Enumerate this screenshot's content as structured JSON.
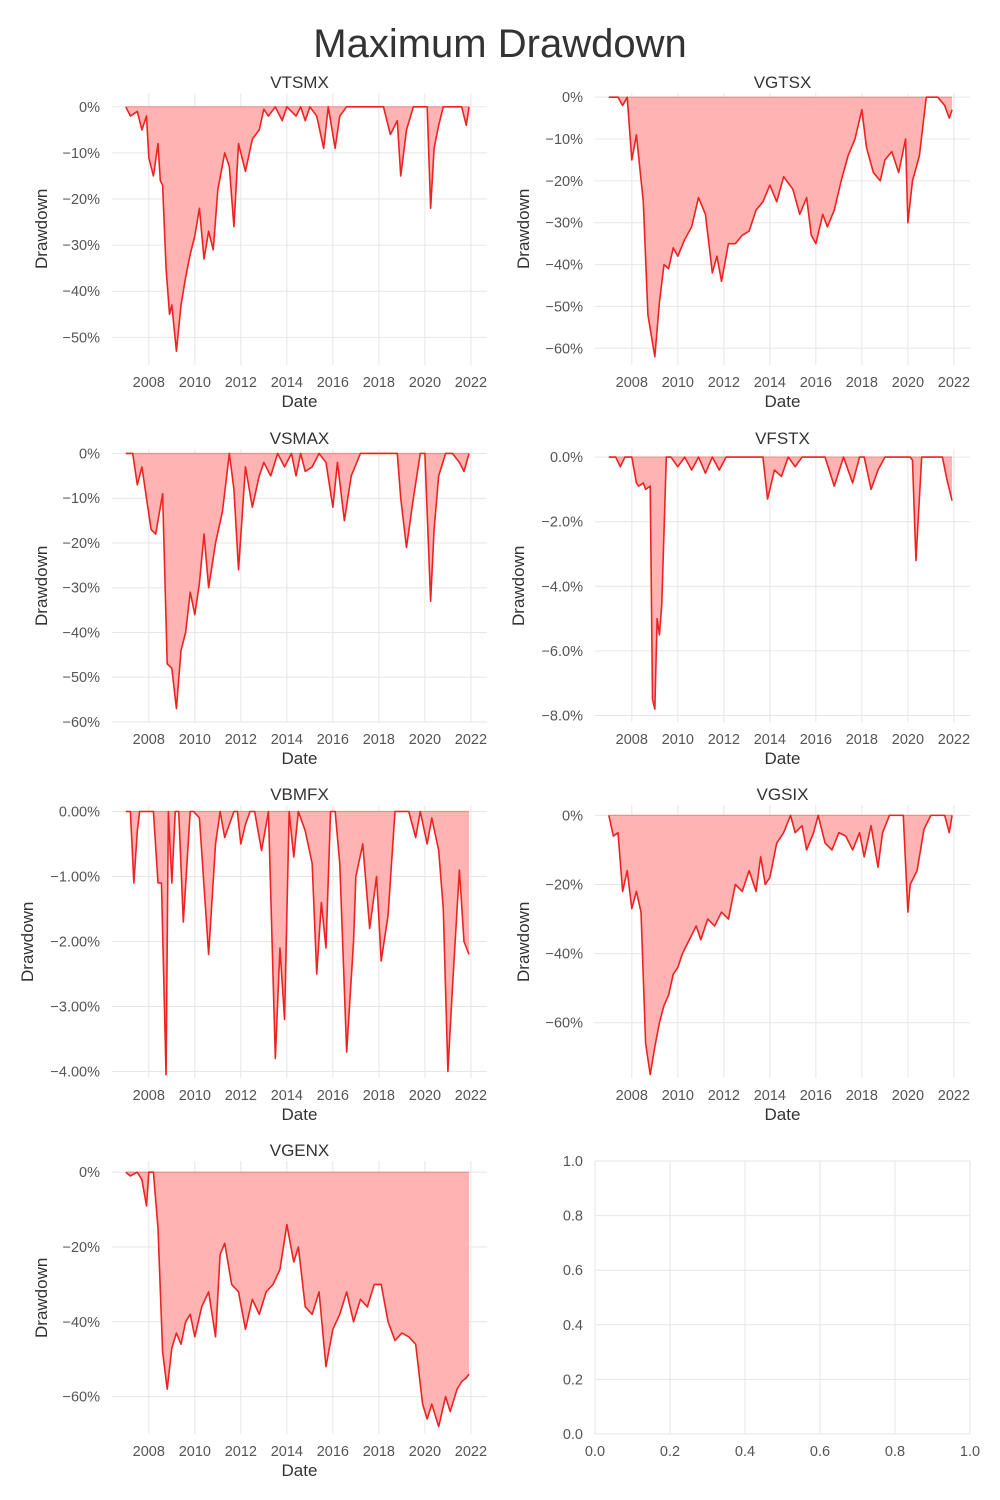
{
  "suptitle": "Maximum Drawdown",
  "chart_data": [
    {
      "type": "area",
      "title": "VTSMX",
      "xlabel": "Date",
      "ylabel": "Drawdown",
      "color": "#ee2222",
      "fill": "#ffb3b3",
      "xlim": [
        2006.4,
        2022.7
      ],
      "ylim": [
        -56,
        3
      ],
      "xticks": [
        2008,
        2010,
        2012,
        2014,
        2016,
        2018,
        2020,
        2022
      ],
      "xtick_labels": [
        "2008",
        "2010",
        "2012",
        "2014",
        "2016",
        "2018",
        "2020",
        "2022"
      ],
      "yticks": [
        0,
        -10,
        -20,
        -30,
        -40,
        -50
      ],
      "ytick_labels": [
        "0%",
        "−10%",
        "−20%",
        "−30%",
        "−40%",
        "−50%"
      ],
      "x": [
        2007.0,
        2007.2,
        2007.5,
        2007.7,
        2007.9,
        2008.0,
        2008.2,
        2008.4,
        2008.5,
        2008.6,
        2008.75,
        2008.9,
        2009.0,
        2009.2,
        2009.4,
        2009.6,
        2009.8,
        2010.0,
        2010.2,
        2010.4,
        2010.6,
        2010.8,
        2011.0,
        2011.3,
        2011.5,
        2011.7,
        2011.9,
        2012.2,
        2012.5,
        2012.8,
        2013.0,
        2013.2,
        2013.5,
        2013.8,
        2014.0,
        2014.2,
        2014.4,
        2014.6,
        2014.8,
        2015.0,
        2015.3,
        2015.6,
        2015.8,
        2016.1,
        2016.3,
        2016.6,
        2017.0,
        2017.5,
        2018.0,
        2018.2,
        2018.5,
        2018.8,
        2018.95,
        2019.2,
        2019.5,
        2019.8,
        2020.1,
        2020.25,
        2020.4,
        2020.6,
        2020.8,
        2021.0,
        2021.4,
        2021.6,
        2021.8,
        2021.92
      ],
      "y": [
        0,
        -2,
        -1,
        -5,
        -2,
        -11,
        -15,
        -8,
        -16,
        -17,
        -35,
        -45,
        -43,
        -53,
        -43,
        -37,
        -32,
        -28,
        -22,
        -33,
        -27,
        -31,
        -18,
        -10,
        -13,
        -26,
        -8,
        -14,
        -7,
        -5,
        -0.5,
        -2,
        0,
        -3,
        0,
        -1,
        -2,
        0,
        -3,
        0,
        -2,
        -9,
        0,
        -9,
        -2,
        0,
        0,
        0,
        0,
        0,
        -6,
        -3,
        -15,
        -5,
        0,
        0,
        0,
        -22,
        -9,
        -4,
        0,
        0,
        0,
        0,
        -4,
        0
      ]
    },
    {
      "type": "area",
      "title": "VGTSX",
      "xlabel": "Date",
      "ylabel": "Drawdown",
      "color": "#ee2222",
      "fill": "#ffb3b3",
      "xlim": [
        2006.4,
        2022.7
      ],
      "ylim": [
        -64,
        1
      ],
      "xticks": [
        2008,
        2010,
        2012,
        2014,
        2016,
        2018,
        2020,
        2022
      ],
      "xtick_labels": [
        "2008",
        "2010",
        "2012",
        "2014",
        "2016",
        "2018",
        "2020",
        "2022"
      ],
      "yticks": [
        0,
        -10,
        -20,
        -30,
        -40,
        -50,
        -60
      ],
      "ytick_labels": [
        "0%",
        "−10%",
        "−20%",
        "−30%",
        "−40%",
        "−50%",
        "−60%"
      ],
      "x": [
        2007.0,
        2007.4,
        2007.6,
        2007.8,
        2008.0,
        2008.2,
        2008.5,
        2008.7,
        2009.0,
        2009.2,
        2009.4,
        2009.6,
        2009.8,
        2010.0,
        2010.3,
        2010.6,
        2010.9,
        2011.2,
        2011.5,
        2011.7,
        2011.9,
        2012.2,
        2012.5,
        2012.8,
        2013.1,
        2013.4,
        2013.7,
        2014.0,
        2014.3,
        2014.6,
        2015.0,
        2015.3,
        2015.6,
        2015.8,
        2016.0,
        2016.3,
        2016.5,
        2016.8,
        2017.1,
        2017.4,
        2017.7,
        2018.0,
        2018.2,
        2018.5,
        2018.8,
        2019.0,
        2019.3,
        2019.6,
        2019.9,
        2020.0,
        2020.2,
        2020.5,
        2020.8,
        2021.0,
        2021.3,
        2021.6,
        2021.8,
        2021.92
      ],
      "y": [
        0,
        0,
        -2,
        0,
        -15,
        -9,
        -25,
        -52,
        -62,
        -49,
        -40,
        -41,
        -36,
        -38,
        -34,
        -31,
        -24,
        -28,
        -42,
        -38,
        -44,
        -35,
        -35,
        -33,
        -32,
        -27,
        -25,
        -21,
        -25,
        -19,
        -22,
        -28,
        -24,
        -33,
        -35,
        -28,
        -31,
        -27,
        -20,
        -14,
        -10,
        -3,
        -12,
        -18,
        -20,
        -15,
        -13,
        -18,
        -10,
        -30,
        -20,
        -14,
        0,
        0,
        0,
        -2,
        -5,
        -3
      ]
    },
    {
      "type": "area",
      "title": "VSMAX",
      "xlabel": "Date",
      "ylabel": "Drawdown",
      "color": "#ee2222",
      "fill": "#ffb3b3",
      "xlim": [
        2006.4,
        2022.7
      ],
      "ylim": [
        -60,
        1
      ],
      "xticks": [
        2008,
        2010,
        2012,
        2014,
        2016,
        2018,
        2020,
        2022
      ],
      "xtick_labels": [
        "2008",
        "2010",
        "2012",
        "2014",
        "2016",
        "2018",
        "2020",
        "2022"
      ],
      "yticks": [
        0,
        -10,
        -20,
        -30,
        -40,
        -50,
        -60
      ],
      "ytick_labels": [
        "0%",
        "−10%",
        "−20%",
        "−30%",
        "−40%",
        "−50%",
        "−60%"
      ],
      "x": [
        2007.0,
        2007.3,
        2007.5,
        2007.7,
        2007.9,
        2008.1,
        2008.3,
        2008.6,
        2008.8,
        2009.0,
        2009.2,
        2009.4,
        2009.6,
        2009.8,
        2010.0,
        2010.2,
        2010.4,
        2010.6,
        2010.9,
        2011.2,
        2011.5,
        2011.7,
        2011.9,
        2012.2,
        2012.5,
        2012.8,
        2013.0,
        2013.3,
        2013.6,
        2013.9,
        2014.2,
        2014.4,
        2014.6,
        2014.8,
        2015.1,
        2015.4,
        2015.7,
        2016.0,
        2016.2,
        2016.5,
        2016.8,
        2017.2,
        2017.6,
        2018.0,
        2018.4,
        2018.8,
        2018.95,
        2019.2,
        2019.5,
        2019.8,
        2020.0,
        2020.25,
        2020.4,
        2020.6,
        2020.9,
        2021.2,
        2021.5,
        2021.7,
        2021.92
      ],
      "y": [
        0,
        0,
        -7,
        -3,
        -10,
        -17,
        -18,
        -9,
        -47,
        -48,
        -57,
        -44,
        -40,
        -31,
        -36,
        -29,
        -18,
        -30,
        -20,
        -13,
        0,
        -8,
        -26,
        -3,
        -12,
        -5,
        -2,
        -5,
        0,
        -3,
        0,
        -5,
        0,
        -4,
        -3,
        0,
        -2,
        -12,
        -2,
        -15,
        -5,
        0,
        0,
        0,
        0,
        0,
        -10,
        -21,
        -10,
        0,
        0,
        -33,
        -17,
        -5,
        0,
        0,
        -2,
        -4,
        0
      ]
    },
    {
      "type": "area",
      "title": "VFSTX",
      "xlabel": "Date",
      "ylabel": "Drawdown",
      "color": "#ee2222",
      "fill": "#ffb3b3",
      "xlim": [
        2006.4,
        2022.7
      ],
      "ylim": [
        -8.2,
        0.25
      ],
      "xticks": [
        2008,
        2010,
        2012,
        2014,
        2016,
        2018,
        2020,
        2022
      ],
      "xtick_labels": [
        "2008",
        "2010",
        "2012",
        "2014",
        "2016",
        "2018",
        "2020",
        "2022"
      ],
      "yticks": [
        0,
        -2,
        -4,
        -6,
        -8
      ],
      "ytick_labels": [
        "0.0%",
        "−2.0%",
        "−4.0%",
        "−6.0%",
        "−8.0%"
      ],
      "x": [
        2007.0,
        2007.3,
        2007.5,
        2007.7,
        2007.8,
        2008.0,
        2008.2,
        2008.3,
        2008.5,
        2008.6,
        2008.8,
        2008.9,
        2009.0,
        2009.1,
        2009.2,
        2009.3,
        2009.5,
        2009.7,
        2010.0,
        2010.3,
        2010.6,
        2010.9,
        2011.2,
        2011.5,
        2011.8,
        2012.1,
        2012.5,
        2013.0,
        2013.4,
        2013.7,
        2013.9,
        2014.2,
        2014.5,
        2014.8,
        2015.1,
        2015.4,
        2015.8,
        2016.1,
        2016.4,
        2016.8,
        2017.2,
        2017.6,
        2017.9,
        2018.1,
        2018.4,
        2018.7,
        2019.0,
        2019.3,
        2019.6,
        2019.8,
        2020.0,
        2020.1,
        2020.2,
        2020.35,
        2020.6,
        2020.9,
        2021.2,
        2021.5,
        2021.7,
        2021.92
      ],
      "y": [
        0,
        0,
        -0.3,
        0,
        0,
        0,
        -0.8,
        -0.9,
        -0.8,
        -1.0,
        -0.9,
        -7.5,
        -7.8,
        -5.0,
        -5.5,
        -4.6,
        0,
        0,
        -0.3,
        0,
        -0.4,
        0,
        -0.5,
        0,
        -0.4,
        0,
        0,
        0,
        0,
        0,
        -1.3,
        -0.4,
        -0.6,
        0,
        -0.3,
        0,
        0,
        0,
        0,
        -0.9,
        0,
        -0.8,
        0,
        0,
        -1.0,
        -0.4,
        0,
        0,
        0,
        0,
        0,
        0,
        -0.1,
        -3.2,
        0,
        0,
        0,
        0,
        -0.7,
        -1.35
      ]
    },
    {
      "type": "area",
      "title": "VBMFX",
      "xlabel": "Date",
      "ylabel": "Drawdown",
      "color": "#ee2222",
      "fill": "#ffb3b3",
      "xlim": [
        2006.4,
        2022.7
      ],
      "ylim": [
        -4.1,
        0.1
      ],
      "xticks": [
        2008,
        2010,
        2012,
        2014,
        2016,
        2018,
        2020,
        2022
      ],
      "xtick_labels": [
        "2008",
        "2010",
        "2012",
        "2014",
        "2016",
        "2018",
        "2020",
        "2022"
      ],
      "yticks": [
        0,
        -1,
        -2,
        -3,
        -4
      ],
      "ytick_labels": [
        "0.00%",
        "−1.00%",
        "−2.00%",
        "−3.00%",
        "−4.00%"
      ],
      "x": [
        2007.0,
        2007.2,
        2007.35,
        2007.5,
        2007.6,
        2008.0,
        2008.2,
        2008.4,
        2008.55,
        2008.75,
        2008.85,
        2009.0,
        2009.15,
        2009.3,
        2009.5,
        2009.8,
        2009.95,
        2010.2,
        2010.6,
        2010.9,
        2011.1,
        2011.3,
        2011.7,
        2011.85,
        2012.0,
        2012.2,
        2012.4,
        2012.6,
        2012.9,
        2013.2,
        2013.5,
        2013.7,
        2013.9,
        2014.1,
        2014.3,
        2014.5,
        2014.8,
        2015.1,
        2015.3,
        2015.5,
        2015.7,
        2015.9,
        2016.1,
        2016.3,
        2016.6,
        2016.9,
        2017.0,
        2017.3,
        2017.6,
        2017.9,
        2018.1,
        2018.4,
        2018.7,
        2019.0,
        2019.3,
        2019.6,
        2019.8,
        2020.1,
        2020.3,
        2020.6,
        2020.8,
        2021.0,
        2021.2,
        2021.5,
        2021.7,
        2021.92
      ],
      "y": [
        0,
        0,
        -1.1,
        -0.3,
        0,
        0,
        0,
        -1.1,
        -1.1,
        -4.05,
        0,
        -1.1,
        0,
        0,
        -1.7,
        0,
        0,
        -0.1,
        -2.2,
        -0.5,
        0,
        -0.4,
        0,
        0,
        -0.5,
        -0.2,
        0,
        0,
        -0.6,
        0,
        -3.8,
        -2.1,
        -3.2,
        0,
        -0.7,
        0,
        -0.3,
        -0.8,
        -2.5,
        -1.4,
        -2.1,
        0,
        0,
        -0.8,
        -3.7,
        -2.0,
        -1.0,
        -0.5,
        -1.8,
        -1.0,
        -2.3,
        -1.6,
        0,
        0,
        0,
        -0.4,
        0,
        -0.5,
        -0.1,
        -0.6,
        -1.5,
        -4.0,
        -2.7,
        -0.9,
        -2.0,
        -2.2
      ]
    },
    {
      "type": "area",
      "title": "VGSIX",
      "xlabel": "Date",
      "ylabel": "Drawdown",
      "color": "#ee2222",
      "fill": "#ffb3b3",
      "xlim": [
        2006.4,
        2022.7
      ],
      "ylim": [
        -76,
        3
      ],
      "xticks": [
        2008,
        2010,
        2012,
        2014,
        2016,
        2018,
        2020,
        2022
      ],
      "xtick_labels": [
        "2008",
        "2010",
        "2012",
        "2014",
        "2016",
        "2018",
        "2020",
        "2022"
      ],
      "yticks": [
        0,
        -20,
        -40,
        -60
      ],
      "ytick_labels": [
        "0%",
        "−20%",
        "−40%",
        "−60%"
      ],
      "x": [
        2007.0,
        2007.2,
        2007.4,
        2007.6,
        2007.8,
        2008.0,
        2008.2,
        2008.4,
        2008.6,
        2008.8,
        2009.0,
        2009.2,
        2009.4,
        2009.6,
        2009.8,
        2010.0,
        2010.2,
        2010.5,
        2010.8,
        2011.0,
        2011.3,
        2011.6,
        2011.9,
        2012.2,
        2012.5,
        2012.8,
        2013.1,
        2013.4,
        2013.6,
        2013.8,
        2014.0,
        2014.3,
        2014.6,
        2014.9,
        2015.1,
        2015.4,
        2015.6,
        2015.9,
        2016.1,
        2016.4,
        2016.7,
        2017.0,
        2017.3,
        2017.6,
        2017.9,
        2018.1,
        2018.4,
        2018.7,
        2018.9,
        2019.2,
        2019.5,
        2019.8,
        2020.0,
        2020.1,
        2020.4,
        2020.7,
        2021.0,
        2021.3,
        2021.6,
        2021.8,
        2021.92
      ],
      "y": [
        0,
        -6,
        -5,
        -22,
        -16,
        -27,
        -22,
        -28,
        -66,
        -75,
        -67,
        -60,
        -55,
        -52,
        -46,
        -44,
        -40,
        -36,
        -32,
        -36,
        -30,
        -32,
        -28,
        -30,
        -20,
        -22,
        -16,
        -22,
        -12,
        -20,
        -18,
        -8,
        -5,
        0,
        -5,
        -3,
        -10,
        -5,
        0,
        -8,
        -10,
        -5,
        -6,
        -10,
        -5,
        -12,
        -3,
        -15,
        -5,
        0,
        0,
        0,
        -28,
        -20,
        -16,
        -4,
        0,
        0,
        0,
        -5,
        0
      ]
    },
    {
      "type": "area",
      "title": "VGENX",
      "xlabel": "Date",
      "ylabel": "Drawdown",
      "color": "#ee2222",
      "fill": "#ffb3b3",
      "xlim": [
        2006.4,
        2022.7
      ],
      "ylim": [
        -70,
        3
      ],
      "xticks": [
        2008,
        2010,
        2012,
        2014,
        2016,
        2018,
        2020,
        2022
      ],
      "xtick_labels": [
        "2008",
        "2010",
        "2012",
        "2014",
        "2016",
        "2018",
        "2020",
        "2022"
      ],
      "yticks": [
        0,
        -20,
        -40,
        -60
      ],
      "ytick_labels": [
        "0%",
        "−20%",
        "−40%",
        "−60%"
      ],
      "x": [
        2007.0,
        2007.2,
        2007.5,
        2007.7,
        2007.9,
        2008.0,
        2008.2,
        2008.4,
        2008.6,
        2008.8,
        2009.0,
        2009.2,
        2009.4,
        2009.6,
        2009.8,
        2010.0,
        2010.3,
        2010.6,
        2010.9,
        2011.1,
        2011.3,
        2011.6,
        2011.9,
        2012.2,
        2012.5,
        2012.8,
        2013.1,
        2013.4,
        2013.7,
        2014.0,
        2014.3,
        2014.5,
        2014.8,
        2015.1,
        2015.4,
        2015.7,
        2016.0,
        2016.3,
        2016.6,
        2016.9,
        2017.2,
        2017.5,
        2017.8,
        2018.1,
        2018.4,
        2018.7,
        2019.0,
        2019.3,
        2019.6,
        2019.9,
        2020.1,
        2020.3,
        2020.6,
        2020.9,
        2021.1,
        2021.4,
        2021.6,
        2021.8,
        2021.92
      ],
      "y": [
        0,
        -1,
        0,
        -2,
        -9,
        0,
        0,
        -15,
        -48,
        -58,
        -47,
        -43,
        -46,
        -40,
        -38,
        -44,
        -36,
        -32,
        -44,
        -22,
        -19,
        -30,
        -32,
        -42,
        -34,
        -38,
        -32,
        -30,
        -26,
        -14,
        -24,
        -20,
        -36,
        -38,
        -32,
        -52,
        -42,
        -38,
        -32,
        -40,
        -34,
        -36,
        -30,
        -30,
        -40,
        -45,
        -43,
        -44,
        -46,
        -62,
        -66,
        -62,
        -68,
        -60,
        -64,
        -58,
        -56,
        -55,
        -54
      ]
    },
    {
      "type": "empty",
      "title": "",
      "xlabel": "",
      "ylabel": "",
      "xlim": [
        0,
        1
      ],
      "ylim": [
        0,
        1
      ],
      "xticks": [
        0,
        0.2,
        0.4,
        0.6,
        0.8,
        1.0
      ],
      "xtick_labels": [
        "0.0",
        "0.2",
        "0.4",
        "0.6",
        "0.8",
        "1.0"
      ],
      "yticks": [
        0,
        0.2,
        0.4,
        0.6,
        0.8,
        1.0
      ],
      "ytick_labels": [
        "0.0",
        "0.2",
        "0.4",
        "0.6",
        "0.8",
        "1.0"
      ],
      "x": [],
      "y": []
    }
  ]
}
